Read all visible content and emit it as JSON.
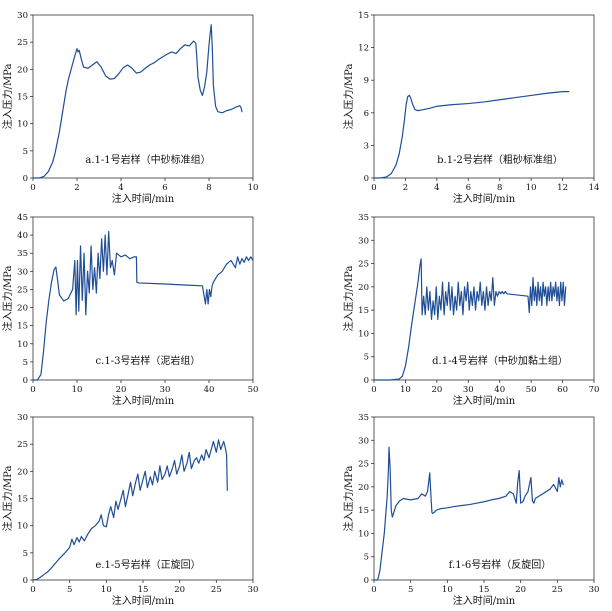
{
  "chart_data": [
    {
      "panel": "a",
      "type": "line",
      "caption": "a.1-1号岩样（中砂标准组）",
      "xlabel": "注入时间/min",
      "ylabel": "注入压力/MPa",
      "xlim": [
        0,
        10
      ],
      "ylim": [
        0,
        30
      ],
      "xticks": [
        0,
        2,
        4,
        6,
        8,
        10
      ],
      "yticks": [
        0,
        5,
        10,
        15,
        20,
        25,
        30
      ],
      "color": "#1f4e96",
      "series": [
        {
          "x": [
            0,
            0.3,
            0.5,
            0.7,
            0.9,
            1.0,
            1.1,
            1.2,
            1.3,
            1.4,
            1.5,
            1.6,
            1.7,
            1.8,
            1.9,
            2.0,
            2.05,
            2.1,
            2.2,
            2.3,
            2.5,
            2.7,
            2.9,
            3.1,
            3.3,
            3.5,
            3.7,
            3.9,
            4.1,
            4.3,
            4.5,
            4.7,
            4.9,
            5.1,
            5.3,
            5.5,
            5.7,
            5.9,
            6.1,
            6.3,
            6.5,
            6.7,
            6.9,
            7.1,
            7.3,
            7.4,
            7.45,
            7.5,
            7.6,
            7.7,
            7.8,
            7.9,
            8.0,
            8.05,
            8.1,
            8.15,
            8.2,
            8.3,
            8.4,
            8.6,
            8.8,
            9.0,
            9.2,
            9.4,
            9.45,
            9.5
          ],
          "y": [
            0,
            0,
            0.3,
            1.2,
            3.0,
            4.5,
            6.5,
            8.5,
            11,
            13.5,
            16,
            18,
            19.5,
            21,
            22.5,
            23.8,
            23.2,
            23.5,
            21.8,
            20.4,
            20.2,
            20.8,
            21.4,
            20.4,
            18.8,
            18.2,
            18.3,
            19.2,
            20.3,
            20.8,
            20.2,
            19.3,
            19.5,
            20.2,
            20.8,
            21.2,
            21.8,
            22.3,
            22.8,
            23.2,
            22.9,
            23.8,
            24.5,
            24.3,
            25.2,
            24.8,
            22,
            18.5,
            16.2,
            15.2,
            16.8,
            19.5,
            24.5,
            26.5,
            28.2,
            24,
            17,
            13.2,
            12.2,
            12.0,
            12.4,
            12.6,
            13.0,
            13.3,
            13.0,
            12.2
          ]
        }
      ]
    },
    {
      "panel": "b",
      "type": "line",
      "caption": "b.1-2号岩样（粗砂标准组）",
      "xlabel": "注入时间/min",
      "ylabel": "注入压力/MPa",
      "xlim": [
        0,
        14
      ],
      "ylim": [
        0,
        15
      ],
      "xticks": [
        0,
        2,
        4,
        6,
        8,
        10,
        12,
        14
      ],
      "yticks": [
        0,
        3,
        6,
        9,
        12,
        15
      ],
      "color": "#1f4e96",
      "series": [
        {
          "x": [
            0,
            0.4,
            0.8,
            1.1,
            1.4,
            1.6,
            1.8,
            1.95,
            2.05,
            2.15,
            2.25,
            2.35,
            2.45,
            2.6,
            2.8,
            3.0,
            3.5,
            4.0,
            5.0,
            6.0,
            7.0,
            8.0,
            9.0,
            10.0,
            11.0,
            12.0,
            12.4
          ],
          "y": [
            0,
            0,
            0.1,
            0.4,
            1.2,
            2.2,
            3.8,
            5.5,
            6.8,
            7.5,
            7.6,
            7.3,
            6.8,
            6.3,
            6.2,
            6.25,
            6.4,
            6.6,
            6.75,
            6.85,
            7.0,
            7.2,
            7.4,
            7.6,
            7.8,
            7.95,
            7.95
          ]
        }
      ]
    },
    {
      "panel": "c",
      "type": "line",
      "caption": "c.1-3号岩样（泥岩组）",
      "xlabel": "注入时间/min",
      "ylabel": "注入压力/MPa",
      "xlim": [
        0,
        50
      ],
      "ylim": [
        0,
        45
      ],
      "xticks": [
        0,
        10,
        20,
        30,
        40,
        50
      ],
      "yticks": [
        0,
        5,
        10,
        15,
        20,
        25,
        30,
        35,
        40,
        45
      ],
      "color": "#1f4e96",
      "series": [
        {
          "x": [
            0,
            1,
            1.8,
            2.4,
            3.0,
            3.6,
            4.2,
            4.8,
            5.2,
            5.6,
            6,
            7,
            8,
            9,
            9.5,
            9.8,
            10.1,
            10.4,
            10.8,
            11.2,
            11.6,
            12.0,
            12.4,
            12.8,
            13.2,
            13.6,
            14.0,
            14.4,
            14.8,
            15.2,
            15.6,
            16.0,
            16.4,
            16.8,
            17.2,
            17.6,
            18,
            18.5,
            19,
            20,
            21,
            22,
            23,
            23.5,
            23.6,
            24,
            30,
            35,
            38.5,
            39.2,
            39.5,
            39.8,
            40.1,
            40.4,
            40.7,
            41,
            42,
            43,
            44,
            45,
            46,
            46.5,
            47,
            47.5,
            48,
            48.5,
            49,
            49.5,
            50
          ],
          "y": [
            0,
            0,
            1.5,
            8,
            16,
            22,
            27,
            30.5,
            31.2,
            27.5,
            23.5,
            21.8,
            22.5,
            25,
            33,
            18,
            33,
            19,
            37,
            22,
            35,
            18,
            30,
            24,
            37,
            25,
            31,
            24,
            35,
            28,
            39,
            30,
            40,
            29,
            41,
            31,
            33,
            29,
            35,
            34,
            34.5,
            33.5,
            34,
            34,
            27,
            26.8,
            26.5,
            26.2,
            26,
            21,
            25,
            21,
            25,
            23,
            26,
            27,
            29,
            30,
            32,
            33,
            31,
            34,
            32,
            33.5,
            32.5,
            34,
            33,
            34,
            33
          ]
        }
      ]
    },
    {
      "panel": "d",
      "type": "line",
      "caption": "d.1-4号岩样（中砂加黏土组）",
      "xlabel": "注入时间/min",
      "ylabel": "注入压力/MPa",
      "xlim": [
        0,
        70
      ],
      "ylim": [
        0,
        35
      ],
      "xticks": [
        0,
        10,
        20,
        30,
        40,
        50,
        60,
        70
      ],
      "yticks": [
        0,
        5,
        10,
        15,
        20,
        25,
        30,
        35
      ],
      "color": "#1f4e96",
      "series": [
        {
          "x": [
            0,
            5,
            8,
            9,
            10,
            11,
            12,
            13,
            14,
            14.6,
            15,
            15.3,
            15.8,
            16.3,
            16.8,
            17.3,
            17.8,
            18.3,
            18.8,
            19.3,
            19.8,
            20.3,
            20.8,
            21.3,
            21.8,
            22.3,
            22.8,
            23.3,
            23.8,
            24.3,
            24.8,
            25.3,
            25.8,
            26.3,
            26.8,
            27.3,
            27.8,
            28.3,
            28.8,
            29.3,
            29.8,
            30.3,
            30.8,
            31.3,
            31.8,
            32.3,
            32.8,
            33.3,
            33.8,
            34.3,
            34.8,
            35.3,
            35.8,
            36.3,
            36.8,
            37.3,
            37.8,
            38.3,
            38.8,
            39.3,
            39.8,
            40.3,
            40.8,
            41.3,
            41.8,
            42.3,
            49,
            49.4,
            49.8,
            50.2,
            50.6,
            51.0,
            51.4,
            51.8,
            52.2,
            52.6,
            53.0,
            53.4,
            53.8,
            54.2,
            54.6,
            55.0,
            55.4,
            55.8,
            56.2,
            56.6,
            57.0,
            57.4,
            57.8,
            58.2,
            58.6,
            59.0,
            59.4,
            59.8,
            60.2,
            60.6,
            61
          ],
          "y": [
            0,
            0,
            0.2,
            0.8,
            3,
            7,
            12,
            16.5,
            21,
            24.5,
            26,
            14,
            18,
            14,
            20,
            15,
            19,
            13,
            17,
            14,
            20,
            13,
            18,
            15,
            21,
            14,
            19,
            16,
            21,
            15,
            20,
            14,
            18,
            15,
            21,
            16,
            19,
            14,
            20,
            17,
            21,
            15,
            19,
            16,
            20,
            15,
            19,
            17,
            21,
            16,
            19,
            15,
            20,
            16,
            19,
            17,
            22,
            16,
            19,
            18,
            19,
            18.5,
            19,
            18.5,
            19,
            18.5,
            18,
            14.5,
            20,
            16,
            22,
            17,
            20,
            16,
            21,
            17,
            20,
            16,
            21,
            18,
            20,
            16,
            20,
            17,
            21,
            17,
            20,
            18,
            21,
            17,
            20,
            16,
            21,
            17,
            21,
            16,
            20
          ]
        }
      ]
    },
    {
      "panel": "e",
      "type": "line",
      "caption": "e.1-5号岩样（正旋回）",
      "xlabel": "注入时间/min",
      "ylabel": "注入压力/MPa",
      "xlim": [
        0,
        30
      ],
      "ylim": [
        0,
        30
      ],
      "xticks": [
        0,
        5,
        10,
        15,
        20,
        25,
        30
      ],
      "yticks": [
        0,
        5,
        10,
        15,
        20,
        25,
        30
      ],
      "color": "#1f4e96",
      "series": [
        {
          "x": [
            0,
            0.5,
            1,
            1.5,
            2,
            2.5,
            3,
            3.5,
            4,
            4.5,
            5,
            5.3,
            5.6,
            6,
            6.3,
            6.6,
            7,
            7.5,
            8,
            8.5,
            9,
            9.3,
            9.6,
            10,
            10.3,
            10.6,
            11,
            11.3,
            11.6,
            12,
            12.3,
            12.6,
            13,
            13.3,
            13.6,
            14,
            14.3,
            14.6,
            15,
            15.3,
            15.6,
            16,
            16.3,
            16.6,
            17,
            17.3,
            17.6,
            18,
            18.3,
            18.6,
            19,
            19.3,
            19.6,
            20,
            20.3,
            20.6,
            21,
            21.3,
            21.6,
            22,
            22.3,
            22.6,
            23,
            23.3,
            23.6,
            24,
            24.3,
            24.6,
            25,
            25.3,
            25.6,
            26,
            26.2,
            26.4,
            26.5
          ],
          "y": [
            0,
            0.1,
            0.5,
            1.0,
            1.5,
            2.2,
            3.0,
            3.8,
            4.5,
            5.2,
            6.0,
            7.5,
            6.5,
            7.8,
            7.0,
            8.0,
            7.2,
            8.5,
            9.5,
            10.0,
            10.8,
            12.0,
            10.0,
            9.8,
            12.0,
            13.5,
            11.5,
            14.5,
            13.0,
            15.0,
            16.5,
            13.5,
            16.0,
            18.0,
            15.5,
            18.0,
            19.5,
            16.5,
            18.5,
            20.0,
            17.0,
            19.0,
            17.5,
            20.0,
            18.0,
            21.0,
            18.5,
            19.5,
            21.0,
            19.0,
            20.5,
            22.0,
            19.5,
            21.0,
            23.0,
            20.0,
            21.5,
            23.5,
            20.5,
            22.0,
            22.5,
            21.5,
            23.0,
            22.0,
            24.0,
            22.5,
            24.0,
            25.5,
            23.5,
            25.8,
            24.0,
            25.5,
            24.5,
            23.0,
            16.5
          ]
        }
      ]
    },
    {
      "panel": "f",
      "type": "line",
      "caption": "f.1-6号岩样（反旋回）",
      "xlabel": "注入时间/min",
      "ylabel": "注入压力/MPa",
      "xlim": [
        0,
        30
      ],
      "ylim": [
        0,
        35
      ],
      "xticks": [
        0,
        5,
        10,
        15,
        20,
        25,
        30
      ],
      "yticks": [
        0,
        5,
        10,
        15,
        20,
        25,
        30,
        35
      ],
      "color": "#1f4e96",
      "series": [
        {
          "x": [
            0,
            0.5,
            0.8,
            1.1,
            1.4,
            1.6,
            1.8,
            1.95,
            2.05,
            2.2,
            2.35,
            2.5,
            2.7,
            3.0,
            3.5,
            4,
            5,
            6,
            6.5,
            7,
            7.3,
            7.6,
            7.8,
            7.9,
            8.0,
            8.2,
            8.5,
            9,
            10,
            11,
            12,
            13,
            14,
            15,
            16,
            17,
            18,
            18.5,
            19,
            19.4,
            19.6,
            19.8,
            20.0,
            20.3,
            20.6,
            21,
            21.4,
            21.6,
            21.8,
            22,
            22.5,
            23,
            24,
            24.5,
            25,
            25.2,
            25.4,
            25.6,
            25.8
          ],
          "y": [
            0,
            0,
            2,
            6,
            10,
            14,
            18,
            23,
            28.5,
            24,
            15,
            13.5,
            14.5,
            16,
            17,
            17.5,
            17.2,
            17.5,
            18.5,
            18,
            19,
            23,
            17,
            14.5,
            14.3,
            14.5,
            15,
            15.3,
            15.5,
            15.8,
            16,
            16.2,
            16.5,
            16.8,
            17.2,
            17.5,
            18,
            19,
            18.5,
            16.5,
            21,
            23.5,
            16.5,
            16.8,
            18,
            19,
            22,
            17,
            16.5,
            17.5,
            18,
            18.5,
            19.5,
            20.5,
            19,
            22,
            20,
            21.5,
            20.5
          ]
        }
      ]
    }
  ]
}
